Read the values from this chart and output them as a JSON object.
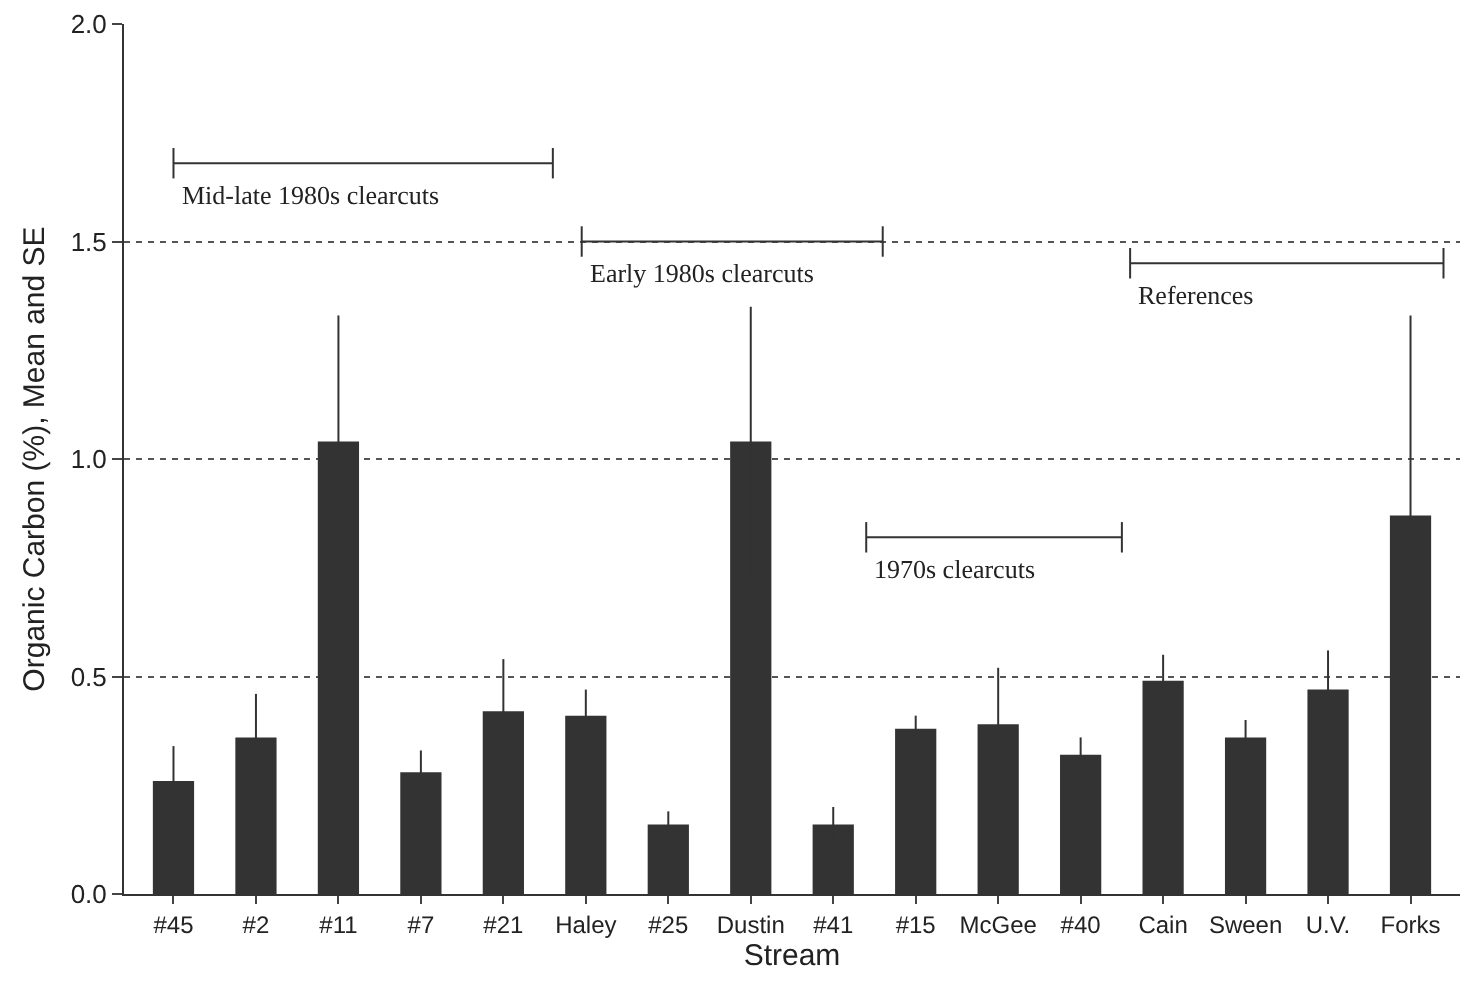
{
  "chart_data": {
    "type": "bar",
    "xlabel": "Stream",
    "ylabel": "Organic Carbon (%), Mean and SE",
    "categories": [
      "#45",
      "#2",
      "#11",
      "#7",
      "#21",
      "Haley",
      "#25",
      "Dustin",
      "#41",
      "#15",
      "McGee",
      "#40",
      "Cain",
      "Sween",
      "U.V.",
      "Forks"
    ],
    "values": [
      0.26,
      0.36,
      1.04,
      0.28,
      0.42,
      0.41,
      0.16,
      1.04,
      0.16,
      0.38,
      0.39,
      0.32,
      0.49,
      0.36,
      0.47,
      0.87
    ],
    "errors": [
      0.08,
      0.1,
      0.29,
      0.05,
      0.12,
      0.06,
      0.03,
      0.31,
      0.04,
      0.03,
      0.13,
      0.04,
      0.06,
      0.04,
      0.09,
      0.46
    ],
    "color": "#333333",
    "ylim": [
      0,
      2
    ],
    "yticks": [
      {
        "value": 0,
        "label": "0.0"
      },
      {
        "value": 0.5,
        "label": "0.5"
      },
      {
        "value": 1,
        "label": "1.0"
      },
      {
        "value": 1.5,
        "label": "1.5"
      },
      {
        "value": 2,
        "label": "2.0"
      }
    ],
    "grid": "y",
    "line_style": "dotted",
    "annotations": [
      "Mid-late 1980s clearcuts",
      "Early 1980s clearcuts",
      "1970s clearcuts",
      "References"
    ]
  }
}
